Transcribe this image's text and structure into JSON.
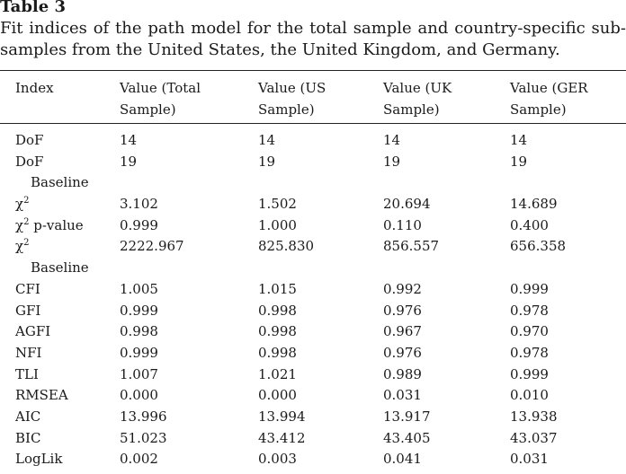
{
  "caption": {
    "label": "Table 3",
    "description": "Fit indices of the path model for the total sample and country-specific sub-samples from the United States, the United Kingdom, and Germany."
  },
  "table": {
    "headers": [
      "Index",
      "Value (Total Sample)",
      "Value (US Sample)",
      "Value (UK Sample)",
      "Value (GER Sample)"
    ],
    "rows": [
      {
        "index": "DoF",
        "index_sub": "",
        "total": "14",
        "us": "14",
        "uk": "14",
        "ger": "14"
      },
      {
        "index": "DoF",
        "index_sub": "Baseline",
        "total": "19",
        "us": "19",
        "uk": "19",
        "ger": "19"
      },
      {
        "index": "χ",
        "index_sup": "2",
        "index_suffix": "",
        "index_sub": "",
        "total": "3.102",
        "us": "1.502",
        "uk": "20.694",
        "ger": "14.689"
      },
      {
        "index": "χ",
        "index_sup": "2",
        "index_suffix": " p-value",
        "index_sub": "",
        "total": "0.999",
        "us": "1.000",
        "uk": "0.110",
        "ger": "0.400"
      },
      {
        "index": "χ",
        "index_sup": "2",
        "index_suffix": "",
        "index_sub": "Baseline",
        "total": "2222.967",
        "us": "825.830",
        "uk": "856.557",
        "ger": "656.358"
      },
      {
        "index": "CFI",
        "index_sub": "",
        "total": "1.005",
        "us": "1.015",
        "uk": "0.992",
        "ger": "0.999"
      },
      {
        "index": "GFI",
        "index_sub": "",
        "total": "0.999",
        "us": "0.998",
        "uk": "0.976",
        "ger": "0.978"
      },
      {
        "index": "AGFI",
        "index_sub": "",
        "total": "0.998",
        "us": "0.998",
        "uk": "0.967",
        "ger": "0.970"
      },
      {
        "index": "NFI",
        "index_sub": "",
        "total": "0.999",
        "us": "0.998",
        "uk": "0.976",
        "ger": "0.978"
      },
      {
        "index": "TLI",
        "index_sub": "",
        "total": "1.007",
        "us": "1.021",
        "uk": "0.989",
        "ger": "0.999"
      },
      {
        "index": "RMSEA",
        "index_sub": "",
        "total": "0.000",
        "us": "0.000",
        "uk": "0.031",
        "ger": "0.010"
      },
      {
        "index": "AIC",
        "index_sub": "",
        "total": "13.996",
        "us": "13.994",
        "uk": "13.917",
        "ger": "13.938"
      },
      {
        "index": "BIC",
        "index_sub": "",
        "total": "51.023",
        "us": "43.412",
        "uk": "43.405",
        "ger": "43.037"
      },
      {
        "index": "LogLik",
        "index_sub": "",
        "total": "0.002",
        "us": "0.003",
        "uk": "0.041",
        "ger": "0.031"
      }
    ]
  }
}
